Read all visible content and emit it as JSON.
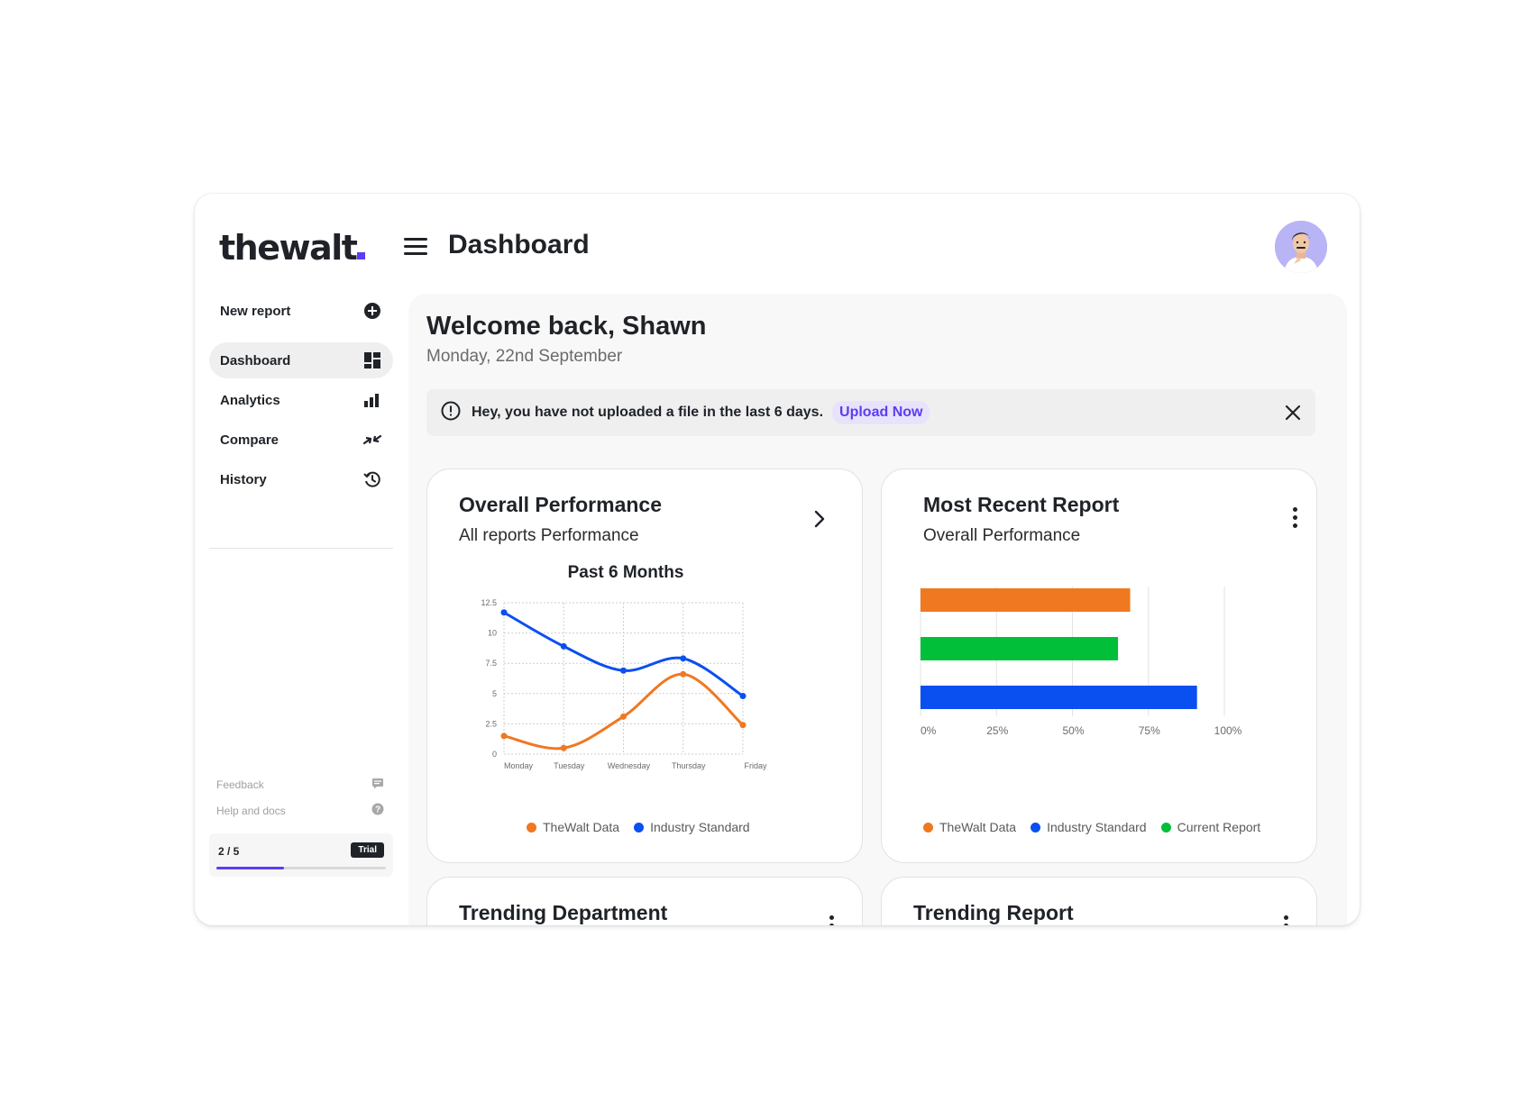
{
  "app": {
    "logo": "thewalt",
    "page_title": "Dashboard"
  },
  "sidebar": {
    "items": [
      {
        "label": "New report",
        "icon": "plus-circle-icon"
      },
      {
        "label": "Dashboard",
        "icon": "dashboard-icon",
        "active": true
      },
      {
        "label": "Analytics",
        "icon": "bar-chart-icon"
      },
      {
        "label": "Compare",
        "icon": "compare-arrows-icon"
      },
      {
        "label": "History",
        "icon": "history-icon"
      }
    ],
    "footer": {
      "feedback": "Feedback",
      "help": "Help and docs"
    },
    "trial": {
      "count": "2 / 5",
      "badge": "Trial",
      "progress": 0.4
    }
  },
  "main": {
    "welcome": "Welcome back, Shawn",
    "date": "Monday, 22nd September",
    "alert": {
      "message": "Hey, you have not uploaded a file in the last 6 days.",
      "action": "Upload Now"
    }
  },
  "cards": {
    "performance": {
      "title": "Overall Performance",
      "subtitle": "All reports Performance"
    },
    "recent": {
      "title": "Most Recent Report",
      "subtitle": "Overall Performance"
    },
    "trending_department": {
      "title": "Trending Department"
    },
    "trending_report": {
      "title": "Trending Report"
    }
  },
  "chart_data": [
    {
      "type": "line",
      "title": "Past 6 Months",
      "categories": [
        "Monday",
        "Tuesday",
        "Wednesday",
        "Thursday",
        "Friday"
      ],
      "yticks": [
        "0",
        "2.5",
        "5",
        "7.5",
        "10",
        "12.5"
      ],
      "ylim": [
        0,
        12.5
      ],
      "series": [
        {
          "name": "TheWalt Data",
          "color": "#f07820",
          "values": [
            1.5,
            0.5,
            3.1,
            6.6,
            2.4
          ]
        },
        {
          "name": "Industry Standard",
          "color": "#0a4ff0",
          "values": [
            11.7,
            8.9,
            6.9,
            7.9,
            4.8
          ]
        }
      ],
      "grid": true,
      "legend": "bottom"
    },
    {
      "type": "bar",
      "orientation": "horizontal",
      "xticks": [
        "0%",
        "25%",
        "50%",
        "75%",
        "100%"
      ],
      "xlim": [
        0,
        100
      ],
      "bars": [
        {
          "color": "#f07820",
          "value": 69
        },
        {
          "color": "#02bf3a",
          "value": 65
        },
        {
          "color": "#0a4ff0",
          "value": 91
        }
      ],
      "legend_entries": [
        {
          "name": "TheWalt Data",
          "color": "#f07820"
        },
        {
          "name": "Industry Standard",
          "color": "#0a4ff0"
        },
        {
          "name": "Current Report",
          "color": "#02bf3a"
        }
      ],
      "grid": true,
      "legend": "bottom"
    }
  ]
}
